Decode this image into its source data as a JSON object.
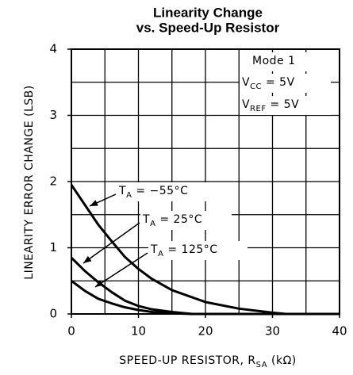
{
  "chart_data": {
    "type": "line",
    "title": "Linearity Change",
    "subtitle": "vs. Speed-Up Resistor",
    "x_label": [
      "SPEED-UP RESISTOR, R",
      "SA",
      " (kΩ)"
    ],
    "y_label": "LINEARITY ERROR CHANGE (LSB)",
    "xlim": [
      0,
      40
    ],
    "ylim": [
      0,
      4
    ],
    "xticks": [
      0,
      10,
      20,
      30,
      40
    ],
    "yticks": [
      0,
      1,
      2,
      3,
      4
    ],
    "xgrid": [
      5,
      10,
      15,
      20,
      25,
      30,
      35
    ],
    "ygrid": [
      0.5,
      1,
      1.5,
      2,
      2.5,
      3,
      3.5
    ],
    "series": [
      {
        "name": [
          "T",
          "A",
          " = −55°C"
        ],
        "color": "#000000",
        "x": [
          0,
          2,
          4,
          6,
          8,
          10,
          12,
          15,
          20,
          25,
          30,
          32,
          40
        ],
        "values": [
          1.95,
          1.65,
          1.35,
          1.1,
          0.86,
          0.68,
          0.53,
          0.36,
          0.18,
          0.08,
          0.02,
          0,
          0
        ]
      },
      {
        "name": [
          "T",
          "A",
          " = 25°C"
        ],
        "color": "#000000",
        "x": [
          0,
          2,
          4,
          6,
          8,
          10,
          12,
          15,
          18,
          40
        ],
        "values": [
          0.85,
          0.65,
          0.48,
          0.33,
          0.2,
          0.12,
          0.07,
          0.03,
          0,
          0
        ]
      },
      {
        "name": [
          "T",
          "A",
          " = 125°C"
        ],
        "color": "#000000",
        "x": [
          0,
          2,
          4,
          6,
          8,
          10,
          12,
          15,
          18,
          40
        ],
        "values": [
          0.5,
          0.35,
          0.23,
          0.16,
          0.1,
          0.06,
          0.03,
          0.01,
          0,
          0
        ]
      }
    ],
    "annotations": [
      [
        "Mode 1"
      ],
      [
        "V",
        "CC",
        " = 5V"
      ],
      [
        "V",
        "REF",
        " = 5V"
      ]
    ]
  }
}
